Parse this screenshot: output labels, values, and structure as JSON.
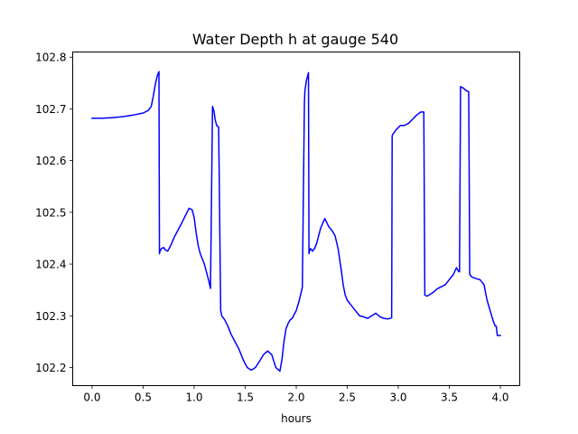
{
  "chart_data": {
    "type": "line",
    "title": "Water Depth h at gauge 540",
    "xlabel": "hours",
    "ylabel": "",
    "xlim": [
      -0.19,
      4.19
    ],
    "ylim": [
      102.165,
      102.81
    ],
    "xticks": [
      0.0,
      0.5,
      1.0,
      1.5,
      2.0,
      2.5,
      3.0,
      3.5,
      4.0
    ],
    "xtick_labels": [
      "0.0",
      "0.5",
      "1.0",
      "1.5",
      "2.0",
      "2.5",
      "3.0",
      "3.5",
      "4.0"
    ],
    "yticks": [
      102.2,
      102.3,
      102.4,
      102.5,
      102.6,
      102.7,
      102.8
    ],
    "ytick_labels": [
      "102.2",
      "102.3",
      "102.4",
      "102.5",
      "102.6",
      "102.7",
      "102.8"
    ],
    "grid": false,
    "series": [
      {
        "color": "#0000ff",
        "x": [
          0.0,
          0.1,
          0.2,
          0.3,
          0.4,
          0.5,
          0.55,
          0.58,
          0.6,
          0.62,
          0.64,
          0.655,
          0.66,
          0.665,
          0.68,
          0.7,
          0.72,
          0.74,
          0.76,
          0.78,
          0.8,
          0.84,
          0.88,
          0.92,
          0.95,
          0.98,
          1.0,
          1.02,
          1.04,
          1.06,
          1.08,
          1.1,
          1.12,
          1.14,
          1.16,
          1.18,
          1.195,
          1.205,
          1.22,
          1.24,
          1.26,
          1.265,
          1.27,
          1.3,
          1.33,
          1.36,
          1.4,
          1.44,
          1.48,
          1.52,
          1.56,
          1.6,
          1.64,
          1.68,
          1.72,
          1.76,
          1.8,
          1.84,
          1.86,
          1.88,
          1.9,
          1.92,
          1.94,
          1.96,
          2.0,
          2.03,
          2.06,
          2.08,
          2.085,
          2.1,
          2.12,
          2.125,
          2.13,
          2.14,
          2.16,
          2.18,
          2.2,
          2.24,
          2.28,
          2.3,
          2.32,
          2.35,
          2.38,
          2.41,
          2.44,
          2.46,
          2.48,
          2.5,
          2.54,
          2.58,
          2.62,
          2.66,
          2.7,
          2.74,
          2.78,
          2.82,
          2.86,
          2.9,
          2.935,
          2.94,
          2.95,
          2.98,
          3.02,
          3.06,
          3.1,
          3.14,
          3.18,
          3.22,
          3.25,
          3.26,
          3.28,
          3.3,
          3.34,
          3.38,
          3.42,
          3.46,
          3.5,
          3.54,
          3.57,
          3.59,
          3.6,
          3.61,
          3.62,
          3.64,
          3.66,
          3.69,
          3.7,
          3.72,
          3.76,
          3.8,
          3.84,
          3.87,
          3.9,
          3.93,
          3.95,
          3.96,
          3.97,
          4.0
        ],
        "y": [
          102.682,
          102.682,
          102.683,
          102.685,
          102.688,
          102.692,
          102.697,
          102.705,
          102.725,
          102.748,
          102.765,
          102.772,
          102.42,
          102.425,
          102.43,
          102.432,
          102.427,
          102.425,
          102.432,
          102.44,
          102.45,
          102.465,
          102.48,
          102.496,
          102.508,
          102.505,
          102.49,
          102.46,
          102.435,
          102.42,
          102.41,
          102.4,
          102.385,
          102.37,
          102.353,
          102.705,
          102.695,
          102.68,
          102.668,
          102.665,
          102.31,
          102.306,
          102.3,
          102.292,
          102.28,
          102.265,
          102.25,
          102.235,
          102.215,
          102.2,
          102.195,
          102.2,
          102.212,
          102.225,
          102.232,
          102.225,
          102.2,
          102.193,
          102.215,
          102.25,
          102.275,
          102.285,
          102.292,
          102.295,
          102.31,
          102.33,
          102.355,
          102.71,
          102.735,
          102.755,
          102.77,
          102.42,
          102.425,
          102.43,
          102.425,
          102.43,
          102.44,
          102.47,
          102.488,
          102.48,
          102.472,
          102.465,
          102.455,
          102.43,
          102.39,
          102.36,
          102.34,
          102.33,
          102.32,
          102.31,
          102.3,
          102.298,
          102.295,
          102.3,
          102.305,
          102.298,
          102.295,
          102.294,
          102.296,
          102.648,
          102.652,
          102.66,
          102.668,
          102.668,
          102.672,
          102.68,
          102.688,
          102.694,
          102.694,
          102.34,
          102.338,
          102.34,
          102.345,
          102.352,
          102.356,
          102.36,
          102.37,
          102.38,
          102.393,
          102.386,
          102.385,
          102.743,
          102.742,
          102.74,
          102.736,
          102.733,
          102.38,
          102.375,
          102.372,
          102.37,
          102.36,
          102.33,
          102.31,
          102.29,
          102.28,
          102.28,
          102.262,
          102.262
        ]
      }
    ]
  }
}
